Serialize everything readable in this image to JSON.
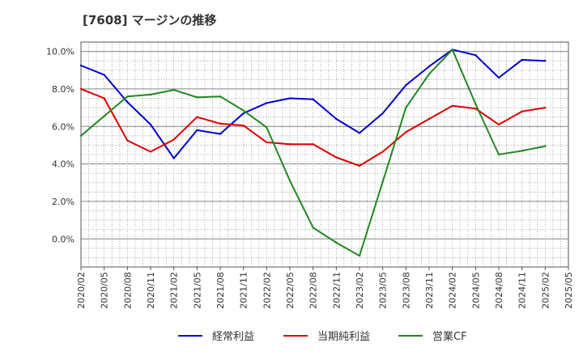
{
  "chart_data": {
    "type": "line",
    "title": "[7608]  マージンの推移",
    "x": [
      "2020/02",
      "2020/05",
      "2020/08",
      "2020/11",
      "2021/02",
      "2021/05",
      "2021/08",
      "2021/11",
      "2022/02",
      "2022/05",
      "2022/08",
      "2022/11",
      "2023/02",
      "2023/05",
      "2023/08",
      "2023/11",
      "2024/02",
      "2024/05",
      "2024/08",
      "2024/11",
      "2025/02"
    ],
    "x_ticks": [
      "2020/02",
      "2020/05",
      "2020/08",
      "2020/11",
      "2021/02",
      "2021/05",
      "2021/08",
      "2021/11",
      "2022/02",
      "2022/05",
      "2022/08",
      "2022/11",
      "2023/02",
      "2023/05",
      "2023/08",
      "2023/11",
      "2024/02",
      "2024/05",
      "2024/08",
      "2024/11",
      "2025/02",
      "2025/05"
    ],
    "y_ticks": [
      0,
      2,
      4,
      6,
      8,
      10
    ],
    "y_tick_labels": [
      "0.0%",
      "2.0%",
      "4.0%",
      "6.0%",
      "8.0%",
      "10.0%"
    ],
    "ylim": [
      -1.5,
      10.5
    ],
    "grid": true,
    "legend_position": "bottom",
    "series": [
      {
        "name": "経常利益",
        "color": "#0000cc",
        "values": [
          9.25,
          8.75,
          7.3,
          6.1,
          4.3,
          5.8,
          5.6,
          6.7,
          7.25,
          7.5,
          7.45,
          6.4,
          5.65,
          6.7,
          8.2,
          9.2,
          10.1,
          9.8,
          8.6,
          9.55,
          9.5
        ]
      },
      {
        "name": "当期純利益",
        "color": "#dd0000",
        "values": [
          8.0,
          7.5,
          5.25,
          4.65,
          5.3,
          6.5,
          6.15,
          6.05,
          5.15,
          5.05,
          5.05,
          4.35,
          3.9,
          4.65,
          5.7,
          6.4,
          7.1,
          6.95,
          6.1,
          6.8,
          7.0
        ]
      },
      {
        "name": "営業CF",
        "color": "#228822",
        "values": [
          5.5,
          6.55,
          7.6,
          7.7,
          7.95,
          7.55,
          7.6,
          6.85,
          5.95,
          3.1,
          0.6,
          -0.2,
          -0.9,
          3.05,
          7.0,
          8.8,
          10.1,
          7.2,
          4.5,
          4.7,
          4.95
        ]
      }
    ]
  }
}
